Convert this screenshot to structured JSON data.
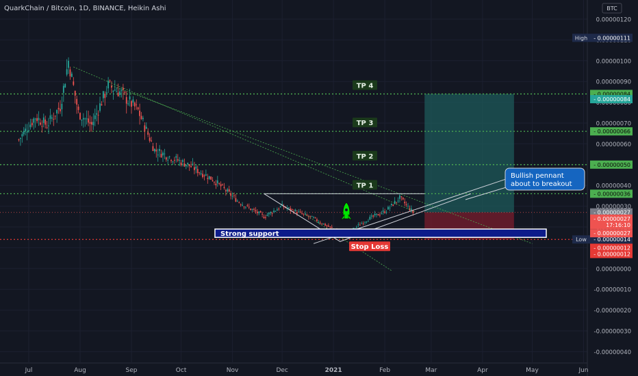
{
  "header": {
    "symbol_title": "QuarkChain / Bitcoin, 1D, BINANCE, Heikin Ashi",
    "currency": "BTC"
  },
  "colors": {
    "background": "#131722",
    "bull": "#26a69a",
    "bear": "#ef5350",
    "tp_line": "#4caf50",
    "stop_line": "#e53935",
    "support_box": "#0d1b8a",
    "target_zone": "#1e5a5a",
    "stop_zone": "#7a1d2e",
    "callout": "#1565c0"
  },
  "chart_data": {
    "type": "candlestick",
    "title": "QuarkChain / Bitcoin, 1D, BINANCE, Heikin Ashi",
    "x_ticks": [
      "Jul",
      "Aug",
      "Sep",
      "Oct",
      "Nov",
      "Dec",
      "2021",
      "Feb",
      "Mar",
      "Apr",
      "May",
      "Jun"
    ],
    "y_ticks": [
      "0.00000120",
      "0.00000110",
      "0.00000100",
      "0.00000090",
      "0.00000080",
      "0.00000070",
      "0.00000060",
      "0.00000050",
      "0.00000040",
      "0.00000030",
      "0.00000020",
      "0.00000010",
      "0.00000000",
      "-0.00000010",
      "-0.00000020",
      "-0.00000030",
      "-0.00000040"
    ],
    "ylim": [
      -4.3e-07,
      1.24e-06
    ],
    "series_keypoints": [
      {
        "date": "2020-06-25",
        "price": 6.2e-07
      },
      {
        "date": "2020-07-05",
        "price": 7.3e-07
      },
      {
        "date": "2020-07-12",
        "price": 6.9e-07
      },
      {
        "date": "2020-07-20",
        "price": 7.8e-07
      },
      {
        "date": "2020-07-25",
        "price": 1e-06
      },
      {
        "date": "2020-07-31",
        "price": 7.5e-07
      },
      {
        "date": "2020-08-08",
        "price": 6.9e-07
      },
      {
        "date": "2020-08-18",
        "price": 8.8e-07
      },
      {
        "date": "2020-08-25",
        "price": 8.5e-07
      },
      {
        "date": "2020-09-05",
        "price": 7.6e-07
      },
      {
        "date": "2020-09-15",
        "price": 5.7e-07
      },
      {
        "date": "2020-10-05",
        "price": 5e-07
      },
      {
        "date": "2020-10-20",
        "price": 4.3e-07
      },
      {
        "date": "2020-11-05",
        "price": 3.2e-07
      },
      {
        "date": "2020-11-20",
        "price": 2.5e-07
      },
      {
        "date": "2020-12-01",
        "price": 3e-07
      },
      {
        "date": "2020-12-20",
        "price": 2.4e-07
      },
      {
        "date": "2021-01-08",
        "price": 1.6e-07
      },
      {
        "date": "2021-01-20",
        "price": 2.3e-07
      },
      {
        "date": "2021-02-02",
        "price": 2.8e-07
      },
      {
        "date": "2021-02-10",
        "price": 3.4e-07
      },
      {
        "date": "2021-02-18",
        "price": 2.7e-07
      }
    ],
    "levels": [
      {
        "name": "TP 4",
        "price": 8.4e-07,
        "label": "0.00000084"
      },
      {
        "name": "TP 3",
        "price": 6.6e-07,
        "label": "0.00000066"
      },
      {
        "name": "TP 2",
        "price": 5e-07,
        "label": "0.00000050"
      },
      {
        "name": "TP 1",
        "price": 3.6e-07,
        "label": "0.00000036"
      }
    ],
    "stop_loss": {
      "label": "Stop Loss",
      "price": 1.4e-07
    },
    "support": {
      "label": "Strong support",
      "price_top": 1.9e-07,
      "price_bottom": 1.5e-07
    },
    "callout": {
      "line1": "Bullish pennant",
      "line2": "about to breakout"
    },
    "high": {
      "label": "High",
      "value": "0.00000111"
    },
    "low": {
      "label": "Low",
      "value": "0.00000014"
    },
    "axis_tags": [
      {
        "text": "0.00000084",
        "price": 8.4e-07,
        "color": "#4caf50"
      },
      {
        "text": "0.00000084",
        "price": 8.15e-07,
        "color": "#26a69a"
      },
      {
        "text": "0.00000066",
        "price": 6.6e-07,
        "color": "#4caf50"
      },
      {
        "text": "0.00000050",
        "price": 5e-07,
        "color": "#4caf50"
      },
      {
        "text": "0.00000036",
        "price": 3.6e-07,
        "color": "#4caf50"
      },
      {
        "text": "0.00000027",
        "price": 2.7e-07,
        "color": "#787b86"
      },
      {
        "text": "0.00000027",
        "price": 2.4e-07,
        "color": "#ef5350"
      },
      {
        "text": "17:16:10",
        "price": 2.1e-07,
        "color": "#ef5350"
      },
      {
        "text": "0.00000027",
        "price": 1.7e-07,
        "color": "#ef5350"
      },
      {
        "text": "0.00000014",
        "price": 1.4e-07,
        "color": "#1e2a4a"
      },
      {
        "text": "0.00000012",
        "price": 1e-07,
        "color": "#e53935"
      },
      {
        "text": "0.00000012",
        "price": 7e-08,
        "color": "#e53935"
      }
    ],
    "grid": true
  }
}
